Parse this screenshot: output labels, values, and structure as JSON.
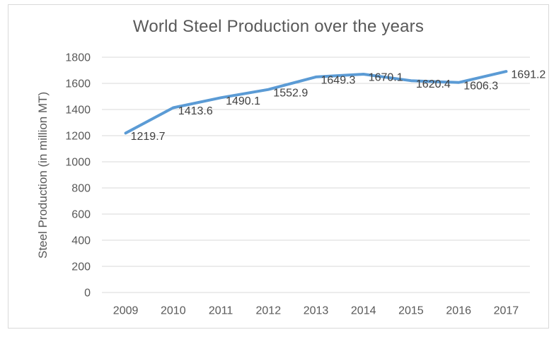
{
  "chart_data": {
    "type": "line",
    "title": "World Steel Production over the years",
    "xlabel": "",
    "ylabel": "Steel Production (in million MT)",
    "categories": [
      "2009",
      "2010",
      "2011",
      "2012",
      "2013",
      "2014",
      "2015",
      "2016",
      "2017"
    ],
    "values": [
      1219.7,
      1413.6,
      1490.1,
      1552.9,
      1649.3,
      1670.1,
      1620.4,
      1606.3,
      1691.2
    ],
    "ylim": [
      0,
      1800
    ],
    "y_ticks": [
      0,
      200,
      400,
      600,
      800,
      1000,
      1200,
      1400,
      1600,
      1800
    ],
    "grid": "horizontal-gridlines-on",
    "legend": "none",
    "data_labels_position": "right-of-point",
    "colors": {
      "line": "#5B9BD5",
      "gridline": "#D9D9D9",
      "border": "#D9D9D9",
      "title_text": "#595959",
      "tick_text": "#595959",
      "axis_title_text": "#595959",
      "data_label_text": "#404040",
      "background": "#FFFFFF"
    }
  }
}
